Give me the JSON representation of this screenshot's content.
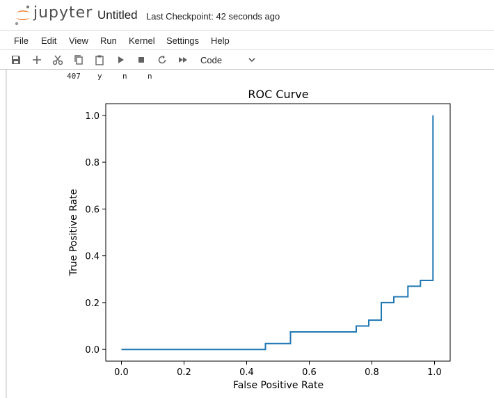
{
  "header": {
    "logo_text": "jupyter",
    "notebook_title": "Untitled",
    "checkpoint": "Last Checkpoint: 42 seconds ago"
  },
  "menu": [
    "File",
    "Edit",
    "View",
    "Run",
    "Kernel",
    "Settings",
    "Help"
  ],
  "toolbar": {
    "icons": [
      "save-icon",
      "add-icon",
      "cut-icon",
      "copy-icon",
      "paste-icon",
      "run-icon",
      "stop-icon",
      "restart-icon",
      "fast-forward-icon"
    ],
    "cell_type": "Code"
  },
  "output": {
    "line": [
      "407",
      "y",
      "n",
      "n"
    ]
  },
  "chart_data": {
    "type": "line",
    "title": "ROC Curve",
    "xlabel": "False Positive Rate",
    "ylabel": "True Positive Rate",
    "xlim": [
      -0.05,
      1.05
    ],
    "ylim": [
      -0.05,
      1.05
    ],
    "xticks": [
      "0.0",
      "0.2",
      "0.4",
      "0.6",
      "0.8",
      "1.0"
    ],
    "yticks": [
      "0.0",
      "0.2",
      "0.4",
      "0.6",
      "0.8",
      "1.0"
    ],
    "grid": false,
    "line_color": "#1f77b4",
    "series": [
      {
        "x": [
          0.0,
          0.46,
          0.46,
          0.54,
          0.54,
          0.75,
          0.75,
          0.79,
          0.79,
          0.83,
          0.83,
          0.87,
          0.87,
          0.915,
          0.915,
          0.955,
          0.955,
          0.995,
          0.995
        ],
        "y": [
          0.0,
          0.0,
          0.025,
          0.025,
          0.075,
          0.075,
          0.1,
          0.1,
          0.125,
          0.125,
          0.2,
          0.2,
          0.225,
          0.225,
          0.27,
          0.27,
          0.295,
          0.295,
          1.0
        ]
      }
    ]
  }
}
